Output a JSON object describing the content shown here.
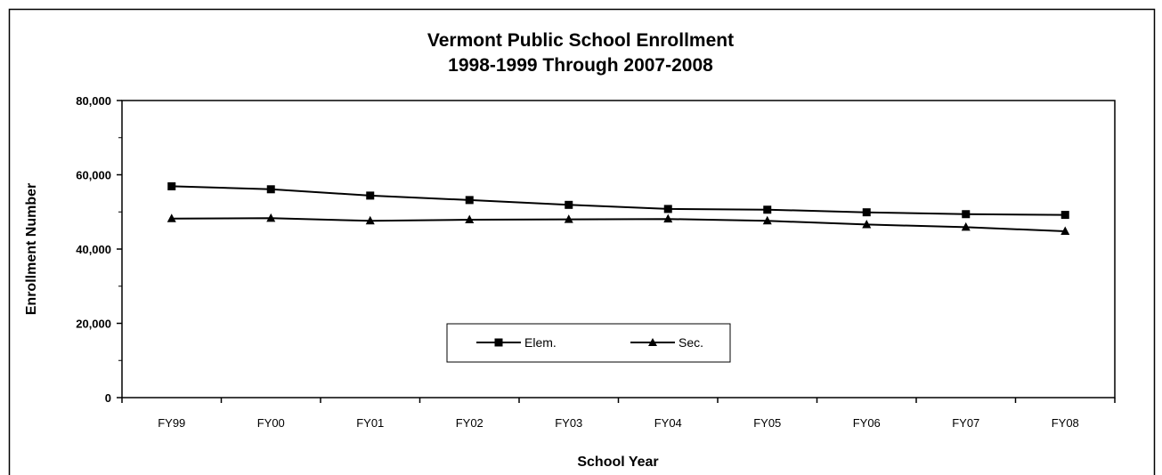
{
  "chart_data": {
    "type": "line",
    "title": "Vermont Public School Enrollment",
    "subtitle": "1998-1999 Through 2007-2008",
    "xlabel": "School Year",
    "ylabel": "Enrollment Number",
    "categories": [
      "FY99",
      "FY00",
      "FY01",
      "FY02",
      "FY03",
      "FY04",
      "FY05",
      "FY06",
      "FY07",
      "FY08"
    ],
    "ylim": [
      0,
      80000
    ],
    "yticks": [
      0,
      20000,
      40000,
      60000,
      80000
    ],
    "ytick_labels": [
      "0",
      "20,000",
      "40,000",
      "60,000",
      "80,000"
    ],
    "grid": false,
    "legend_position": "bottom-center",
    "series": [
      {
        "name": "Elem.",
        "marker": "square",
        "color": "#000000",
        "values": [
          56900,
          56100,
          54400,
          53200,
          51900,
          50800,
          50600,
          49900,
          49400,
          49200
        ]
      },
      {
        "name": "Sec.",
        "marker": "triangle",
        "color": "#000000",
        "values": [
          48200,
          48300,
          47600,
          47900,
          48000,
          48100,
          47600,
          46600,
          45900,
          44800
        ]
      }
    ]
  }
}
